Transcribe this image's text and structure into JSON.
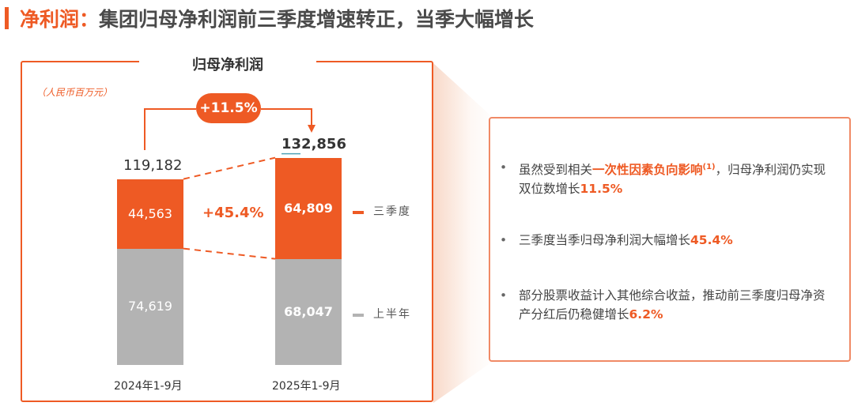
{
  "title": {
    "lead": "净利润：",
    "text": "集团归母净利润前三季度增速转正，当季大幅增长"
  },
  "chart_data": {
    "type": "bar",
    "title": "归母净利润",
    "unit": "（人民币百万元）",
    "categories": [
      "2024年1-9月",
      "2025年1-9月"
    ],
    "series": [
      {
        "name": "上半年",
        "values": [
          74619,
          68047
        ],
        "labels": [
          "74,619",
          "68,047"
        ],
        "color": "#B3B3B3"
      },
      {
        "name": "三季度",
        "values": [
          44563,
          64809
        ],
        "labels": [
          "44,563",
          "64,809"
        ],
        "color": "#EE5A24"
      }
    ],
    "totals": [
      "119,182",
      "132,856"
    ],
    "total_growth": "+11.5%",
    "q3_growth": "+45.4%",
    "stacked": true
  },
  "bullets": [
    {
      "pre": "虽然受到相关",
      "highlight": "一次性因素负向影响",
      "sup": "(1)",
      "post": "，归母净利润仍实现双位数增长",
      "value": "11.5%"
    },
    {
      "pre": "三季度当季归母净利润大幅增长",
      "value": "45.4%"
    },
    {
      "pre": "部分股票收益计入其他综合收益，推动前三季度归母净资产分红后仍稳健增长",
      "value": "6.2%"
    }
  ]
}
